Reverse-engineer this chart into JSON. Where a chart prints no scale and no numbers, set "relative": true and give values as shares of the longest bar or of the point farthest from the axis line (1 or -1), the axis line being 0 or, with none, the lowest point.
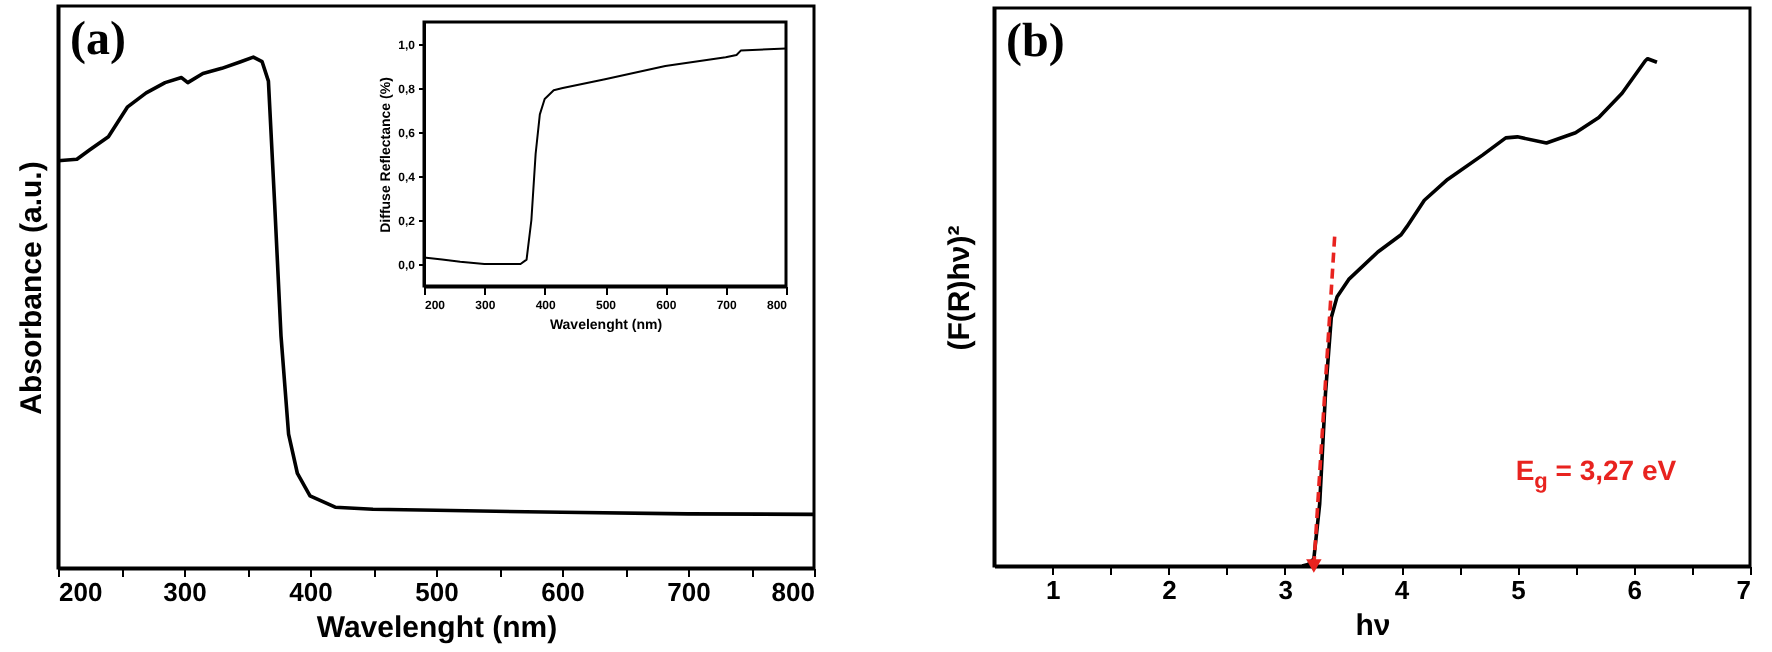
{
  "chart_data": [
    {
      "type": "line",
      "title": "(a)",
      "xlabel": "Wavelenght (nm)",
      "ylabel": "Absorbance (a.u.)",
      "relative": true,
      "xlim": [
        200,
        800
      ],
      "xticks": [
        200,
        {
          "value": 250,
          "label": null
        },
        300,
        {
          "value": 350,
          "label": null
        },
        400,
        {
          "value": 450,
          "label": null
        },
        500,
        {
          "value": 550,
          "label": null
        },
        600,
        {
          "value": 650,
          "label": null
        },
        700,
        {
          "value": 750,
          "label": null
        },
        800
      ],
      "grid": false,
      "series": [
        {
          "color": "#000000",
          "x": [
            200,
            215,
            225,
            240,
            255,
            270,
            285,
            298,
            303,
            315,
            330,
            345,
            355,
            362,
            367,
            372,
            377,
            383,
            390,
            400,
            420,
            450,
            500,
            600,
            700,
            800
          ],
          "values": [
            0.797,
            0.8,
            0.818,
            0.844,
            0.902,
            0.93,
            0.95,
            0.96,
            0.95,
            0.968,
            0.978,
            0.991,
            1.0,
            0.991,
            0.953,
            0.71,
            0.454,
            0.262,
            0.185,
            0.141,
            0.119,
            0.115,
            0.113,
            0.109,
            0.106,
            0.105
          ]
        }
      ]
    },
    {
      "type": "line",
      "xlabel": "Wavelenght (nm)",
      "ylabel": "Diffuse Reflectance (%)",
      "xlim": [
        200,
        800
      ],
      "xticks": [
        200,
        300,
        400,
        500,
        600,
        700,
        800
      ],
      "ylim": [
        -0.1,
        1.1
      ],
      "yticks": [
        {
          "value": 0,
          "label": "0,0"
        },
        {
          "value": 0.2,
          "label": "0,2"
        },
        {
          "value": 0.4,
          "label": "0,4"
        },
        {
          "value": 0.6,
          "label": "0,6"
        },
        {
          "value": 0.8,
          "label": "0,8"
        },
        {
          "value": 1,
          "label": "1,0"
        }
      ],
      "grid": false,
      "series": [
        {
          "color": "#000000",
          "x": [
            200,
            230,
            260,
            300,
            360,
            370,
            378,
            385,
            392,
            400,
            415,
            430,
            500,
            600,
            700,
            718,
            725,
            800
          ],
          "values": [
            0.03,
            0.02,
            0.01,
            0,
            0,
            0.02,
            0.2,
            0.5,
            0.68,
            0.75,
            0.79,
            0.8,
            0.84,
            0.9,
            0.94,
            0.95,
            0.97,
            0.98
          ]
        }
      ]
    },
    {
      "type": "line",
      "title": "(b)",
      "xlabel": "hν",
      "ylabel": "(F(R)hν)²",
      "relative": true,
      "xlim": [
        0.5,
        7
      ],
      "xticks": [
        1,
        {
          "value": 1.5,
          "label": null
        },
        2,
        {
          "value": 2.5,
          "label": null
        },
        3,
        {
          "value": 3.5,
          "label": null
        },
        4,
        {
          "value": 4.5,
          "label": null
        },
        5,
        {
          "value": 5.5,
          "label": null
        },
        6,
        {
          "value": 6.5,
          "label": null
        },
        7
      ],
      "grid": false,
      "annotations": [
        "E$_{g}$ = 3,27 eV"
      ],
      "series": [
        {
          "color": "#000000",
          "x": [
            3.15,
            3.2,
            3.25,
            3.3,
            3.35,
            3.4,
            3.45,
            3.55,
            3.8,
            4.0,
            4.05,
            4.2,
            4.4,
            4.7,
            4.9,
            5.0,
            5.25,
            5.5,
            5.7,
            5.9,
            6.1,
            6.12,
            6.2
          ],
          "values": [
            0,
            0.003,
            0.014,
            0.122,
            0.34,
            0.49,
            0.531,
            0.565,
            0.619,
            0.653,
            0.669,
            0.721,
            0.762,
            0.81,
            0.844,
            0.846,
            0.834,
            0.854,
            0.884,
            0.932,
            0.996,
            1.0,
            0.993
          ]
        },
        {
          "type": "line",
          "color": "#e8231f",
          "line_style": "dashed",
          "x": [
            3.25,
            3.43
          ],
          "values": [
            0,
            0.653
          ]
        }
      ]
    }
  ]
}
